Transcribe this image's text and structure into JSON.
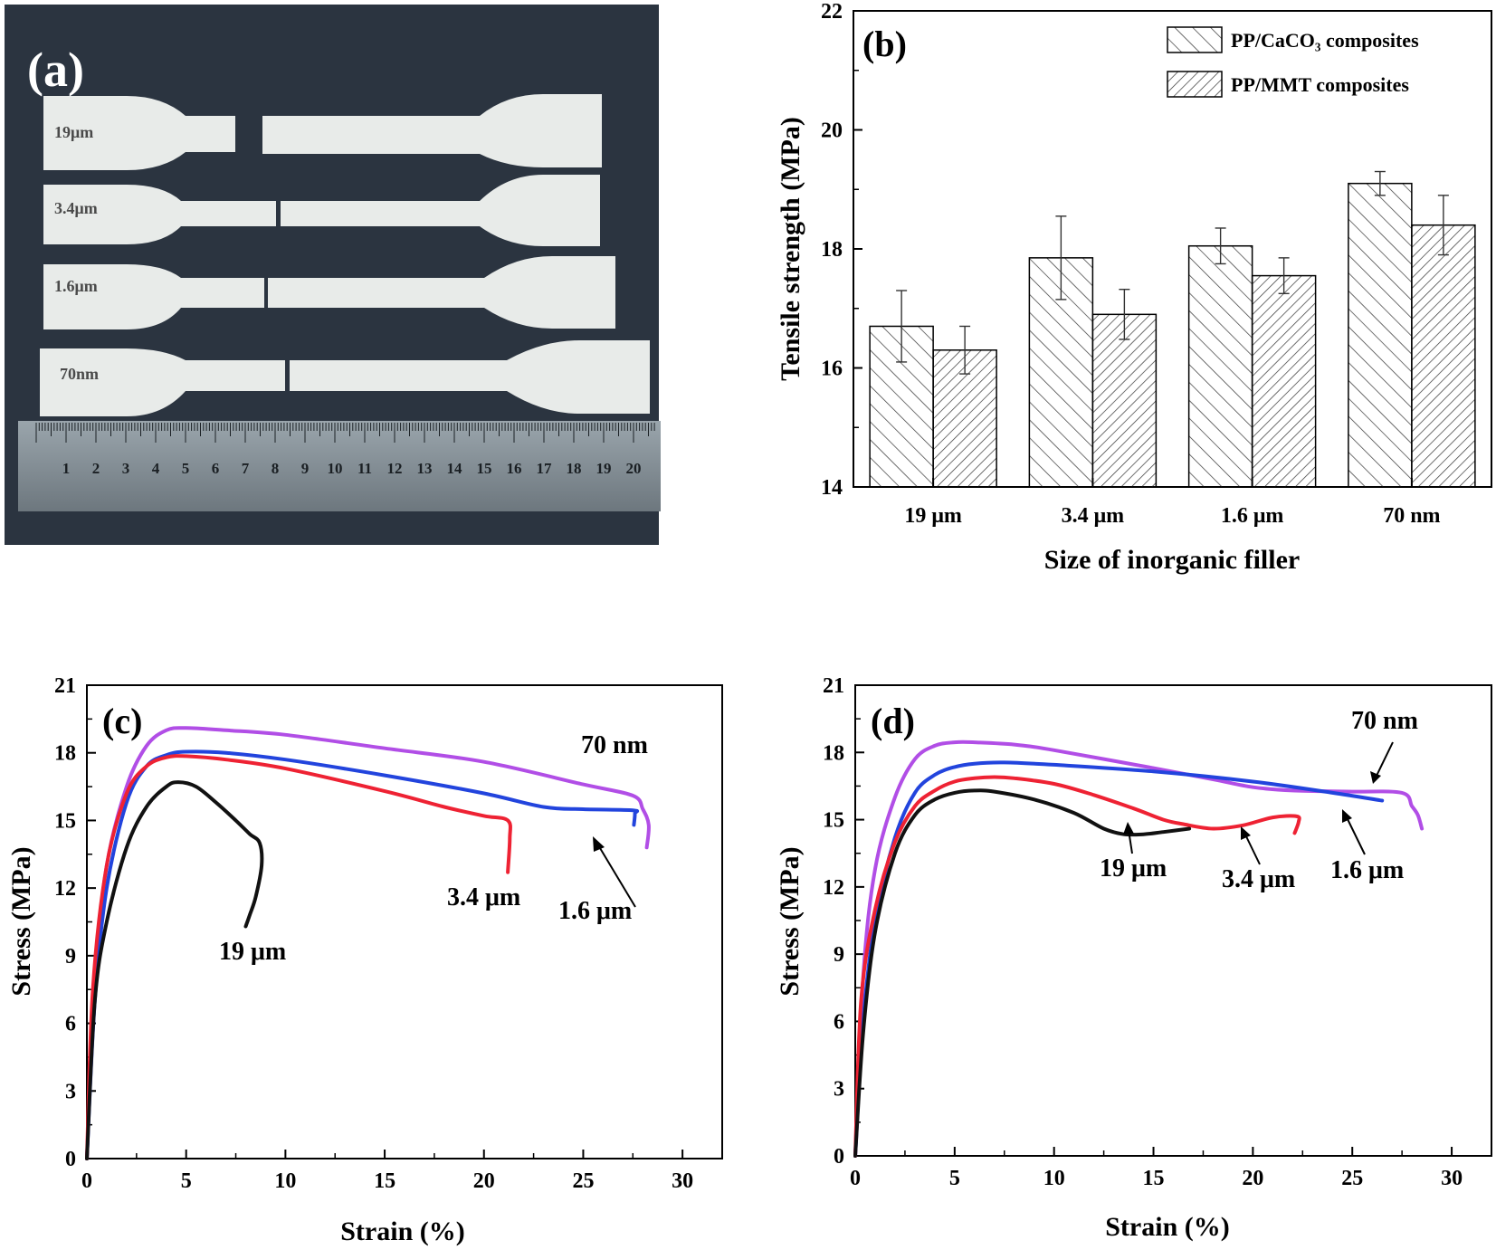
{
  "photo": {
    "panel_label": "(a)",
    "specimens": [
      "19μm",
      "3.4μm",
      "1.6μm",
      "70nm"
    ],
    "ruler_numbers": [
      "1",
      "2",
      "3",
      "4",
      "5",
      "6",
      "7",
      "8",
      "9",
      "10",
      "11",
      "12",
      "13",
      "14",
      "15",
      "16",
      "17",
      "18",
      "19",
      "20"
    ]
  },
  "chart_data": [
    {
      "type": "bar",
      "panel_label": "(b)",
      "categories": [
        "19 μm",
        "3.4 μm",
        "1.6 μm",
        "70 nm"
      ],
      "series": [
        {
          "name": "PP/CaCO₃ composites",
          "values": [
            16.7,
            17.85,
            18.05,
            19.1
          ],
          "errors": [
            0.6,
            0.7,
            0.3,
            0.2
          ]
        },
        {
          "name": "PP/MMT composites",
          "values": [
            16.3,
            16.9,
            17.55,
            18.4
          ],
          "errors": [
            0.4,
            0.42,
            0.3,
            0.5
          ]
        }
      ],
      "xlabel": "Size of inorganic filler",
      "ylabel": "Tensile strength (MPa)",
      "ylim": [
        14,
        22
      ],
      "yticks": [
        14,
        16,
        18,
        20,
        22
      ],
      "legend_position": "top-right",
      "grid": false
    },
    {
      "type": "line",
      "panel_label": "(c)",
      "xlabel": "Strain (%)",
      "ylabel": "Stress (MPa)",
      "xlim": [
        0,
        32
      ],
      "ylim": [
        0,
        21
      ],
      "xticks": [
        0,
        5,
        10,
        15,
        20,
        25,
        30
      ],
      "yticks": [
        0,
        3,
        6,
        9,
        12,
        15,
        18,
        21
      ],
      "grid": false,
      "annotations": [
        "70 nm",
        "3.4 μm",
        "1.6 μm",
        "19 μm"
      ],
      "series": [
        {
          "color": "#b14ee6",
          "x": [
            0,
            0.4,
            1,
            2,
            3,
            4,
            5,
            7,
            10,
            15,
            20,
            25,
            27.5,
            28,
            28.3,
            28.2
          ],
          "y": [
            0,
            8,
            13,
            16.5,
            18.3,
            19,
            19.1,
            19,
            18.8,
            18.2,
            17.6,
            16.6,
            16.1,
            15.5,
            14.8,
            13.8
          ]
        },
        {
          "color": "#2244dd",
          "x": [
            0,
            0.4,
            1,
            2,
            3,
            4,
            5,
            7,
            10,
            15,
            20,
            23,
            25,
            27.5,
            27.6,
            27.55
          ],
          "y": [
            0,
            7,
            12,
            15.8,
            17.4,
            17.9,
            18.05,
            18,
            17.7,
            17,
            16.2,
            15.6,
            15.5,
            15.45,
            15.3,
            14.8
          ]
        },
        {
          "color": "#ee2233",
          "x": [
            0,
            0.3,
            1,
            2,
            3,
            4,
            5,
            7,
            10,
            15,
            18,
            20,
            21.2,
            21.3,
            21.2
          ],
          "y": [
            0,
            7.5,
            13,
            16.2,
            17.4,
            17.8,
            17.85,
            17.7,
            17.3,
            16.3,
            15.6,
            15.2,
            15,
            14.2,
            12.7
          ]
        },
        {
          "color": "#111111",
          "x": [
            0,
            0.4,
            1,
            2,
            3,
            4,
            4.6,
            5.5,
            6.5,
            7.5,
            8.2,
            8.7,
            8.8,
            8.5,
            8.2,
            8
          ],
          "y": [
            0,
            7,
            10.5,
            13.8,
            15.6,
            16.5,
            16.7,
            16.5,
            15.8,
            15,
            14.4,
            14,
            13,
            11.6,
            10.8,
            10.3
          ]
        }
      ]
    },
    {
      "type": "line",
      "panel_label": "(d)",
      "xlabel": "Strain (%)",
      "ylabel": "Stress (MPa)",
      "xlim": [
        0,
        32
      ],
      "ylim": [
        0,
        21
      ],
      "xticks": [
        0,
        5,
        10,
        15,
        20,
        25,
        30
      ],
      "yticks": [
        0,
        3,
        6,
        9,
        12,
        15,
        18,
        21
      ],
      "grid": false,
      "annotations": [
        "70 nm",
        "19 μm",
        "3.4 μm",
        "1.6 μm"
      ],
      "series": [
        {
          "color": "#b14ee6",
          "x": [
            0,
            0.4,
            1,
            2,
            3,
            4,
            5,
            6,
            8,
            10,
            15,
            18,
            20,
            22,
            25,
            27.5,
            28,
            28.3,
            28.5
          ],
          "y": [
            0,
            8,
            12.8,
            16,
            17.7,
            18.3,
            18.45,
            18.45,
            18.35,
            18.1,
            17.3,
            16.8,
            16.45,
            16.3,
            16.25,
            16.2,
            15.6,
            15.2,
            14.6
          ]
        },
        {
          "color": "#2244dd",
          "x": [
            0,
            0.4,
            1,
            2,
            3,
            4,
            5,
            6,
            7.5,
            10,
            15,
            20,
            24,
            26.5
          ],
          "y": [
            0,
            6,
            10.5,
            14.2,
            16.2,
            17,
            17.35,
            17.5,
            17.55,
            17.45,
            17.15,
            16.7,
            16.2,
            15.85
          ]
        },
        {
          "color": "#ee2233",
          "x": [
            0,
            0.3,
            1,
            2,
            3,
            4,
            5,
            6,
            7,
            8,
            10,
            12,
            14,
            15.5,
            16.5,
            18,
            19.5,
            21,
            22.2,
            22.3,
            22.1
          ],
          "y": [
            0,
            7,
            11,
            14,
            15.6,
            16.3,
            16.7,
            16.85,
            16.9,
            16.85,
            16.6,
            16.1,
            15.5,
            15,
            14.8,
            14.6,
            14.75,
            15.1,
            15.15,
            14.9,
            14.4
          ]
        },
        {
          "color": "#111111",
          "x": [
            0,
            0.4,
            1,
            2,
            3,
            4,
            5,
            6,
            7,
            9,
            11,
            12.5,
            13.5,
            14.5,
            15.5,
            16.8
          ],
          "y": [
            0,
            5.5,
            10,
            13.5,
            15.2,
            15.9,
            16.2,
            16.3,
            16.25,
            15.9,
            15.3,
            14.6,
            14.35,
            14.35,
            14.45,
            14.6
          ]
        }
      ]
    }
  ]
}
